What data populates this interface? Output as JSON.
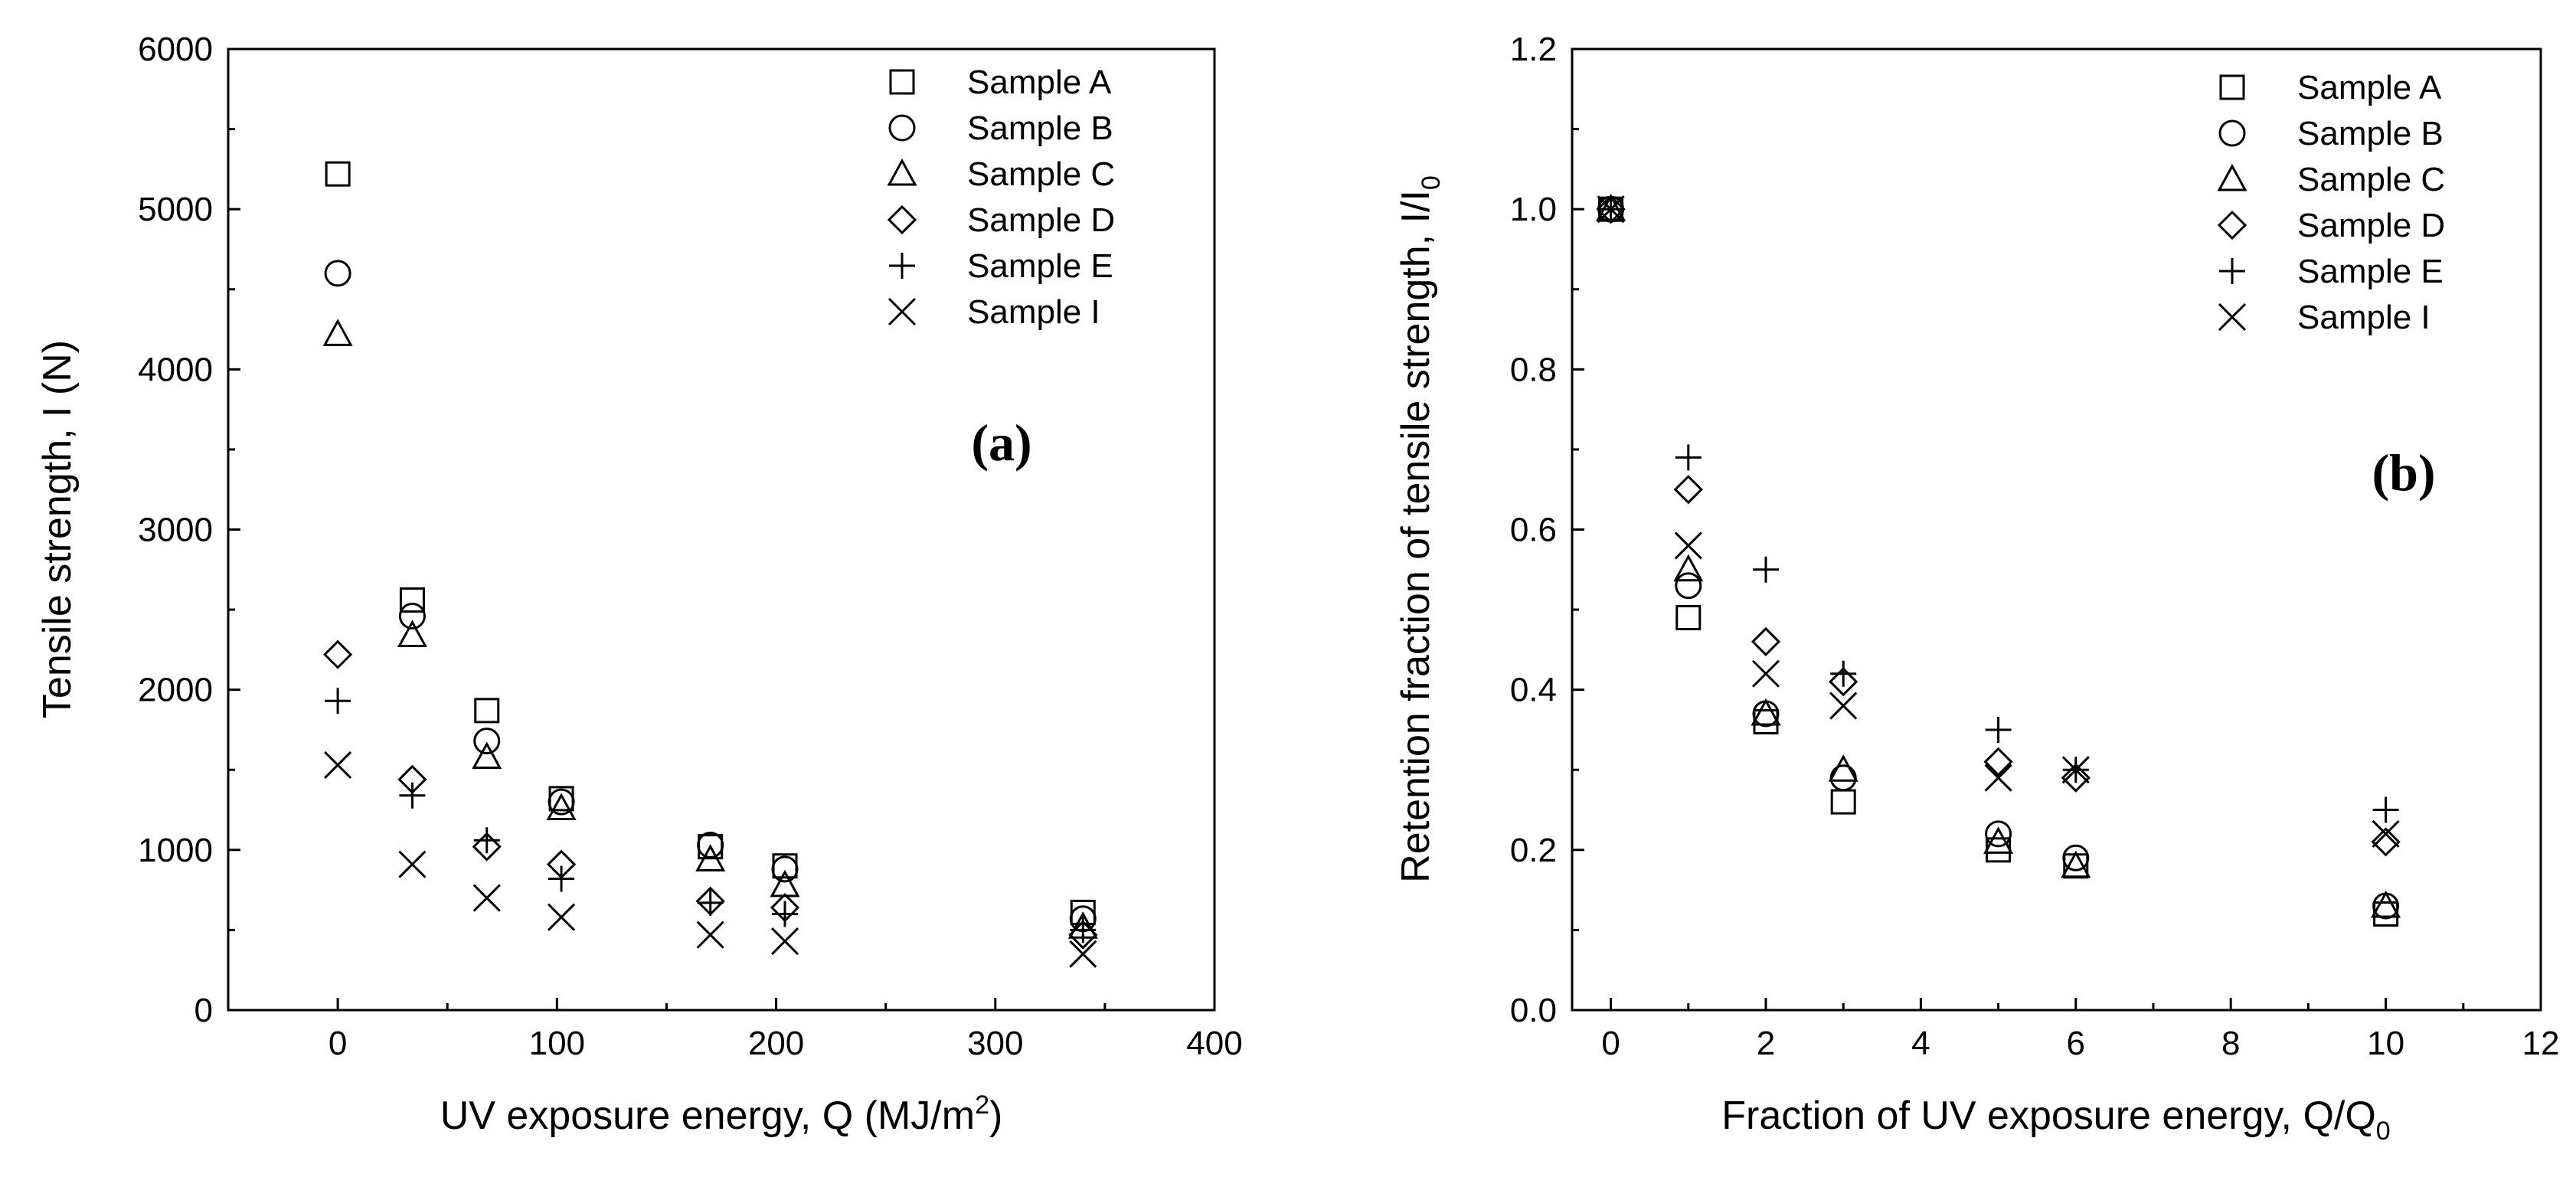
{
  "colors": {
    "ink": "#000000",
    "background": "#ffffff"
  },
  "chart_data": [
    {
      "type": "scatter",
      "panel_label": "(a)",
      "xlabel": "UV exposure energy, Q (MJ/m",
      "xlabel_sup": "2",
      "xlabel_end": ")",
      "ylabel": "Tensile strength, I (N)",
      "xlim": [
        -50,
        400
      ],
      "ylim": [
        0,
        6000
      ],
      "xticks": [
        0,
        100,
        200,
        300,
        400
      ],
      "yticks": [
        0,
        1000,
        2000,
        3000,
        4000,
        5000,
        6000
      ],
      "xtick_labels": [
        "0",
        "100",
        "200",
        "300",
        "400"
      ],
      "ytick_labels": [
        "0",
        "1000",
        "2000",
        "3000",
        "4000",
        "5000",
        "6000"
      ],
      "legend_position": "top-right",
      "series": [
        {
          "name": "Sample A",
          "marker": "square",
          "x": [
            0,
            34,
            68,
            102,
            170,
            204,
            340
          ],
          "y": [
            5220,
            2560,
            1870,
            1320,
            1020,
            900,
            610
          ]
        },
        {
          "name": "Sample B",
          "marker": "circle",
          "x": [
            0,
            34,
            68,
            102,
            170,
            204,
            340
          ],
          "y": [
            4600,
            2460,
            1680,
            1300,
            1030,
            880,
            570
          ]
        },
        {
          "name": "Sample C",
          "marker": "triangle",
          "x": [
            0,
            34,
            68,
            102,
            170,
            204,
            340
          ],
          "y": [
            4220,
            2340,
            1580,
            1260,
            940,
            780,
            520
          ]
        },
        {
          "name": "Sample D",
          "marker": "diamond",
          "x": [
            0,
            34,
            68,
            102,
            170,
            204,
            340
          ],
          "y": [
            2220,
            1440,
            1020,
            910,
            680,
            640,
            470
          ]
        },
        {
          "name": "Sample E",
          "marker": "plus",
          "x": [
            0,
            34,
            68,
            102,
            170,
            204,
            340
          ],
          "y": [
            1930,
            1340,
            1060,
            820,
            670,
            600,
            500
          ]
        },
        {
          "name": "Sample I",
          "marker": "x",
          "x": [
            0,
            34,
            68,
            102,
            170,
            204,
            340
          ],
          "y": [
            1530,
            910,
            700,
            580,
            470,
            430,
            350
          ]
        }
      ]
    },
    {
      "type": "scatter",
      "panel_label": "(b)",
      "xlabel": "Fraction of UV exposure energy, Q/Q",
      "xlabel_sub": "0",
      "ylabel": "Retention fraction of tensile strength, I/I",
      "ylabel_sub": "0",
      "xlim": [
        -0.5,
        12
      ],
      "ylim": [
        0,
        1.2
      ],
      "xticks": [
        0,
        2,
        4,
        6,
        8,
        10,
        12
      ],
      "yticks": [
        0,
        0.2,
        0.4,
        0.6,
        0.8,
        1.0,
        1.2
      ],
      "xtick_labels": [
        "0",
        "2",
        "4",
        "6",
        "8",
        "10",
        "12"
      ],
      "ytick_labels": [
        "0.0",
        "0.2",
        "0.4",
        "0.6",
        "0.8",
        "1.0",
        "1.2"
      ],
      "legend_position": "top-right",
      "series": [
        {
          "name": "Sample A",
          "marker": "square",
          "x": [
            0,
            1,
            2,
            3,
            5,
            6,
            10
          ],
          "y": [
            1.0,
            0.49,
            0.36,
            0.26,
            0.2,
            0.18,
            0.12
          ]
        },
        {
          "name": "Sample B",
          "marker": "circle",
          "x": [
            0,
            1,
            2,
            3,
            5,
            6,
            10
          ],
          "y": [
            1.0,
            0.53,
            0.37,
            0.29,
            0.22,
            0.19,
            0.13
          ]
        },
        {
          "name": "Sample C",
          "marker": "triangle",
          "x": [
            0,
            1,
            2,
            3,
            5,
            6,
            10
          ],
          "y": [
            1.0,
            0.55,
            0.37,
            0.3,
            0.21,
            0.18,
            0.13
          ]
        },
        {
          "name": "Sample D",
          "marker": "diamond",
          "x": [
            0,
            1,
            2,
            3,
            5,
            6,
            10
          ],
          "y": [
            1.0,
            0.65,
            0.46,
            0.41,
            0.31,
            0.29,
            0.21
          ]
        },
        {
          "name": "Sample E",
          "marker": "plus",
          "x": [
            0,
            1,
            2,
            3,
            5,
            6,
            10
          ],
          "y": [
            1.0,
            0.69,
            0.55,
            0.42,
            0.35,
            0.3,
            0.25
          ]
        },
        {
          "name": "Sample I",
          "marker": "x",
          "x": [
            0,
            1,
            2,
            3,
            5,
            6,
            10
          ],
          "y": [
            1.0,
            0.58,
            0.42,
            0.38,
            0.29,
            0.3,
            0.22
          ]
        }
      ]
    }
  ]
}
